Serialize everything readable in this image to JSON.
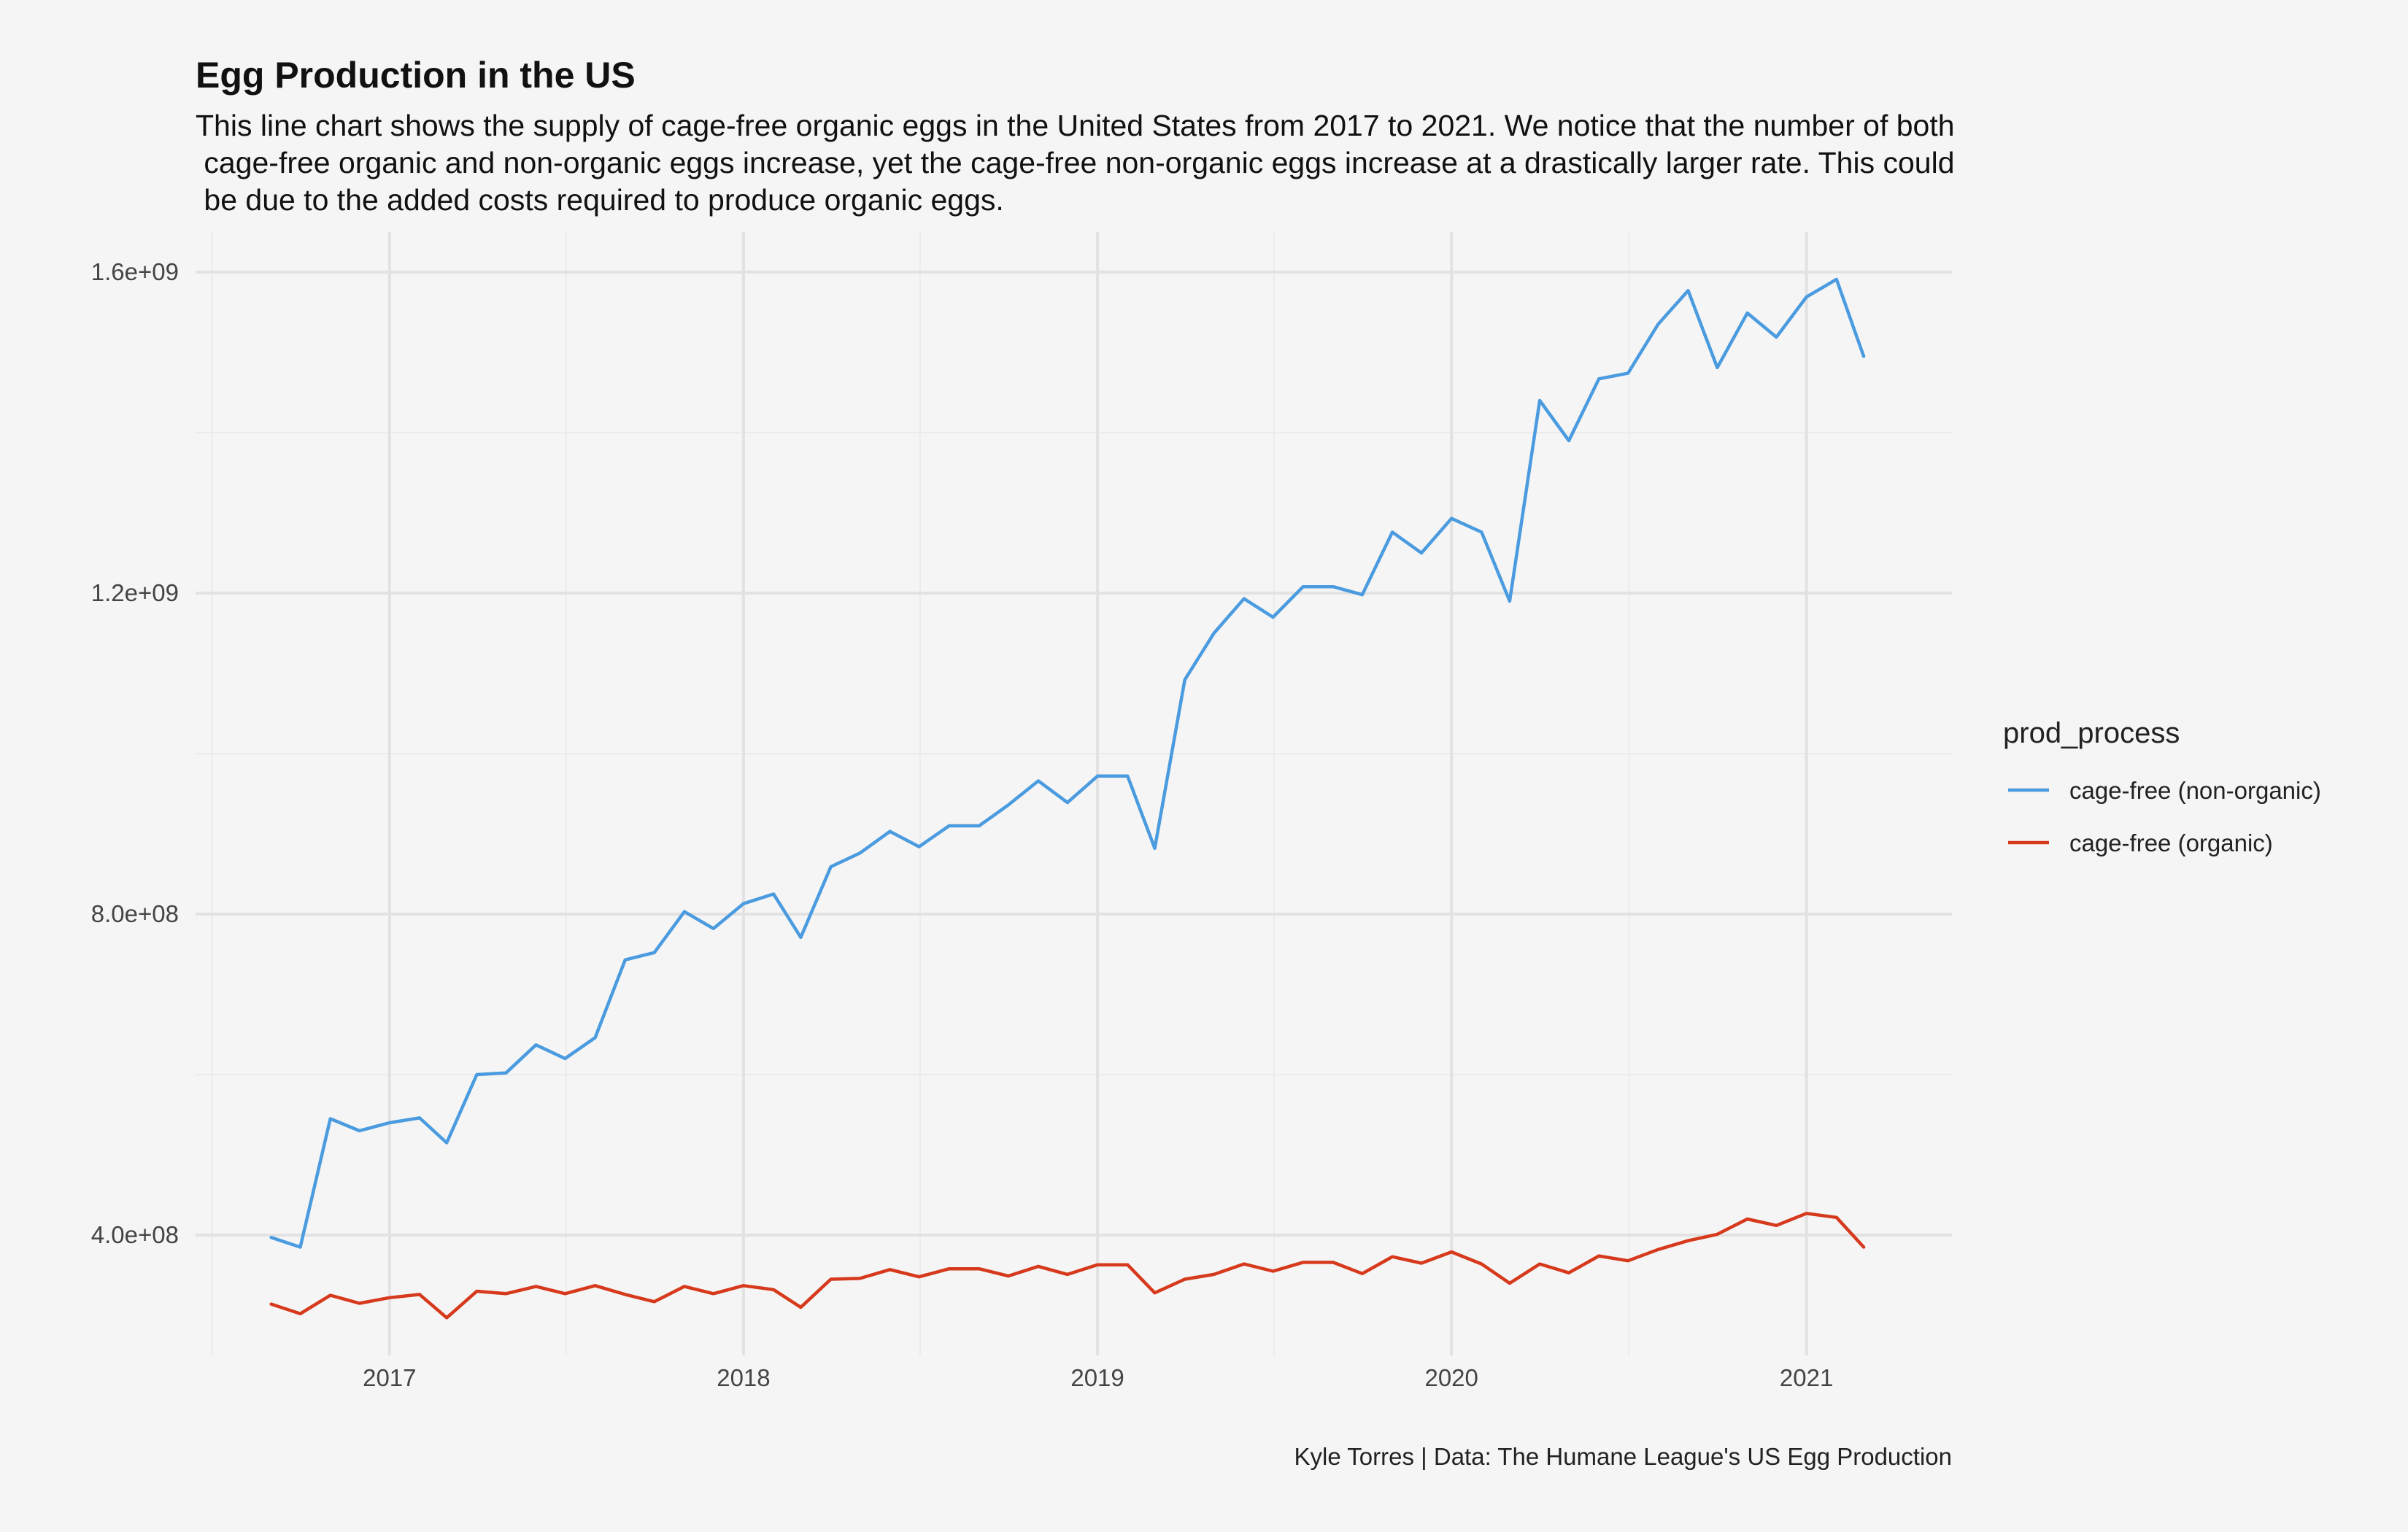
{
  "chart_data": {
    "type": "line",
    "title": "Egg Production in the US",
    "subtitle_lines": [
      "This line chart shows the supply of cage-free organic eggs in the United States from 2017 to 2021. We notice that the number of both",
      " cage-free organic and non-organic eggs increase, yet the cage-free non-organic eggs increase at a drastically larger rate. This could",
      " be due to the added costs required to produce organic eggs."
    ],
    "caption": "Kyle Torres | Data: The Humane League's US Egg Production",
    "xlabel": "",
    "ylabel": "",
    "x_ticks": [
      "2017",
      "2018",
      "2019",
      "2020",
      "2021"
    ],
    "y_ticks": [
      "4.0e+08",
      "8.0e+08",
      "1.2e+09",
      "1.6e+09"
    ],
    "y_tick_values": [
      400000000,
      800000000,
      1200000000,
      1600000000
    ],
    "ylim": [
      250000000,
      1650000000
    ],
    "xlim": [
      "2016-06-15",
      "2021-05-31"
    ],
    "grid": true,
    "legend": {
      "title": "prod_process",
      "position": "right"
    },
    "dates": [
      "2016-09-01",
      "2016-10-01",
      "2016-11-01",
      "2016-12-01",
      "2017-01-01",
      "2017-02-01",
      "2017-03-01",
      "2017-04-01",
      "2017-05-01",
      "2017-06-01",
      "2017-07-01",
      "2017-08-01",
      "2017-09-01",
      "2017-10-01",
      "2017-11-01",
      "2017-12-01",
      "2018-01-01",
      "2018-02-01",
      "2018-03-01",
      "2018-04-01",
      "2018-05-01",
      "2018-06-01",
      "2018-07-01",
      "2018-08-01",
      "2018-09-01",
      "2018-10-01",
      "2018-11-01",
      "2018-12-01",
      "2019-01-01",
      "2019-02-01",
      "2019-03-01",
      "2019-04-01",
      "2019-05-01",
      "2019-06-01",
      "2019-07-01",
      "2019-08-01",
      "2019-09-01",
      "2019-10-01",
      "2019-11-01",
      "2019-12-01",
      "2020-01-01",
      "2020-02-01",
      "2020-03-01",
      "2020-04-01",
      "2020-05-01",
      "2020-06-01",
      "2020-07-01",
      "2020-08-01",
      "2020-09-01",
      "2020-10-01",
      "2020-11-01",
      "2020-12-01",
      "2021-01-01",
      "2021-02-01",
      "2021-03-01"
    ],
    "series": [
      {
        "name": "cage-free (non-organic)",
        "color": "#4a9bdf",
        "values": [
          397000000,
          385000000,
          545000000,
          530000000,
          540000000,
          546000000,
          515000000,
          600000000,
          602000000,
          637000000,
          620000000,
          646000000,
          743000000,
          752000000,
          803000000,
          782000000,
          813000000,
          825000000,
          771000000,
          859000000,
          876000000,
          903000000,
          884000000,
          910000000,
          910000000,
          936000000,
          966000000,
          939000000,
          972000000,
          972000000,
          882000000,
          1092000000,
          1150000000,
          1193000000,
          1170000000,
          1208000000,
          1208000000,
          1198000000,
          1276000000,
          1250000000,
          1293000000,
          1276000000,
          1190000000,
          1440000000,
          1390000000,
          1467000000,
          1474000000,
          1535000000,
          1577000000,
          1481000000,
          1549000000,
          1519000000,
          1569000000,
          1591000000,
          1495000000
        ]
      },
      {
        "name": "cage-free (organic)",
        "color": "#d6391c",
        "values": [
          314000000,
          302000000,
          325000000,
          315000000,
          322000000,
          326000000,
          297000000,
          330000000,
          327000000,
          336000000,
          327000000,
          337000000,
          326000000,
          317000000,
          336000000,
          327000000,
          337000000,
          332000000,
          310000000,
          345000000,
          346000000,
          357000000,
          348000000,
          358000000,
          358000000,
          349000000,
          361000000,
          351000000,
          363000000,
          363000000,
          328000000,
          345000000,
          351000000,
          364000000,
          355000000,
          366000000,
          366000000,
          352000000,
          373000000,
          365000000,
          379000000,
          364000000,
          340000000,
          364000000,
          353000000,
          374000000,
          368000000,
          382000000,
          393000000,
          401000000,
          420000000,
          412000000,
          427000000,
          422000000,
          385000000
        ]
      }
    ]
  }
}
